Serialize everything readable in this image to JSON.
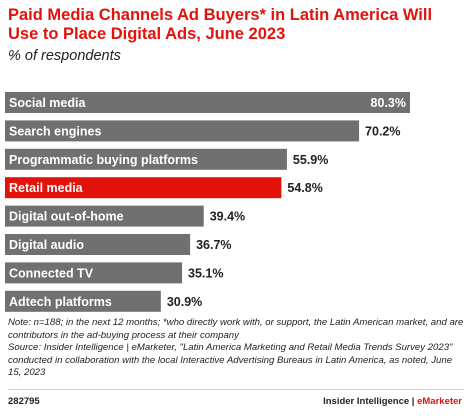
{
  "header": {
    "title": "Paid Media Channels Ad Buyers* in Latin America Will Use to Place Digital Ads, June 2023",
    "subtitle": "% of respondents"
  },
  "chart_data": {
    "type": "bar",
    "orientation": "horizontal",
    "categories": [
      "Social media",
      "Search engines",
      "Programmatic buying platforms",
      "Retail media",
      "Digital out-of-home",
      "Digital audio",
      "Connected TV",
      "Adtech platforms"
    ],
    "values": [
      80.3,
      70.2,
      55.9,
      54.8,
      39.4,
      36.7,
      35.1,
      30.9
    ],
    "value_labels": [
      "80.3%",
      "70.2%",
      "55.9%",
      "54.8%",
      "39.4%",
      "36.7%",
      "35.1%",
      "30.9%"
    ],
    "highlight_index": 3,
    "xlim": [
      0,
      80.3
    ],
    "colors": {
      "bar": "#707070",
      "highlight": "#e3120b"
    }
  },
  "notes": {
    "text": "Note: n=188; in the next 12 months; *who directly work with, or support, the Latin American market, and are contributors in the ad-buying process at their company",
    "source": "Source: Insider Intelligence | eMarketer, \"Latin America Marketing and Retail Media Trends Survey 2023\" conducted in collaboration with the local Interactive Advertising Bureaus in Latin America, as noted, June 15, 2023"
  },
  "footer": {
    "id": "282795",
    "brand_left": "Insider Intelligence | ",
    "brand_right": "eMarketer"
  }
}
